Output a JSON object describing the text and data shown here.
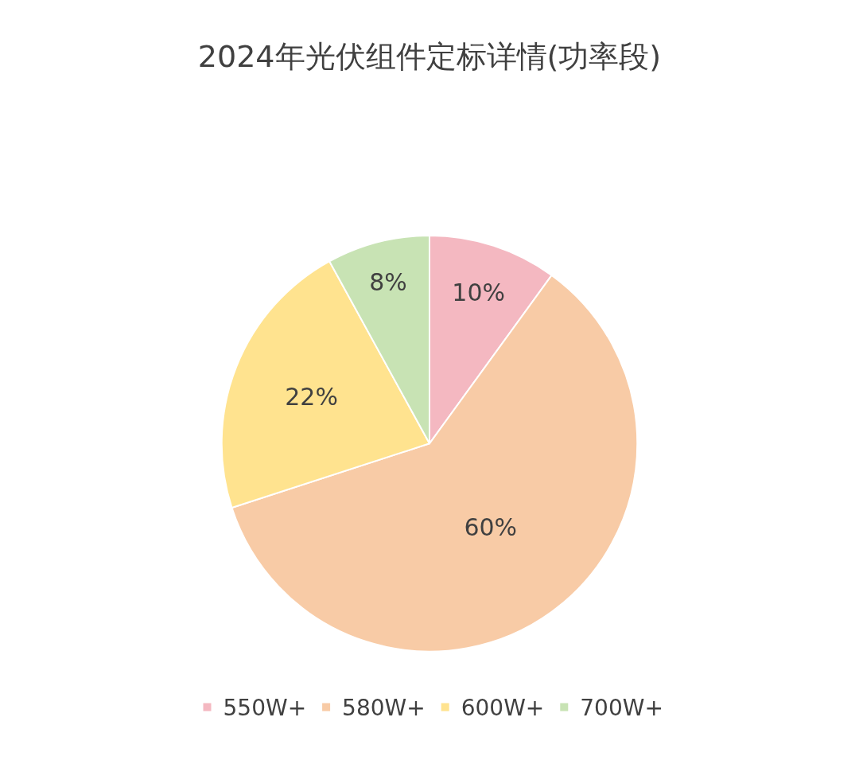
{
  "chart_data": {
    "type": "pie",
    "title": "2024年光伏组件定标详情(功率段)",
    "categories": [
      "550W+",
      "580W+",
      "600W+",
      "700W+"
    ],
    "values": [
      10,
      60,
      22,
      8
    ],
    "value_labels": [
      "10%",
      "60%",
      "22%",
      "8%"
    ],
    "colors": [
      "#f4b8c1",
      "#f8cba6",
      "#ffe38f",
      "#c8e3b4"
    ],
    "legend": "bottom"
  }
}
